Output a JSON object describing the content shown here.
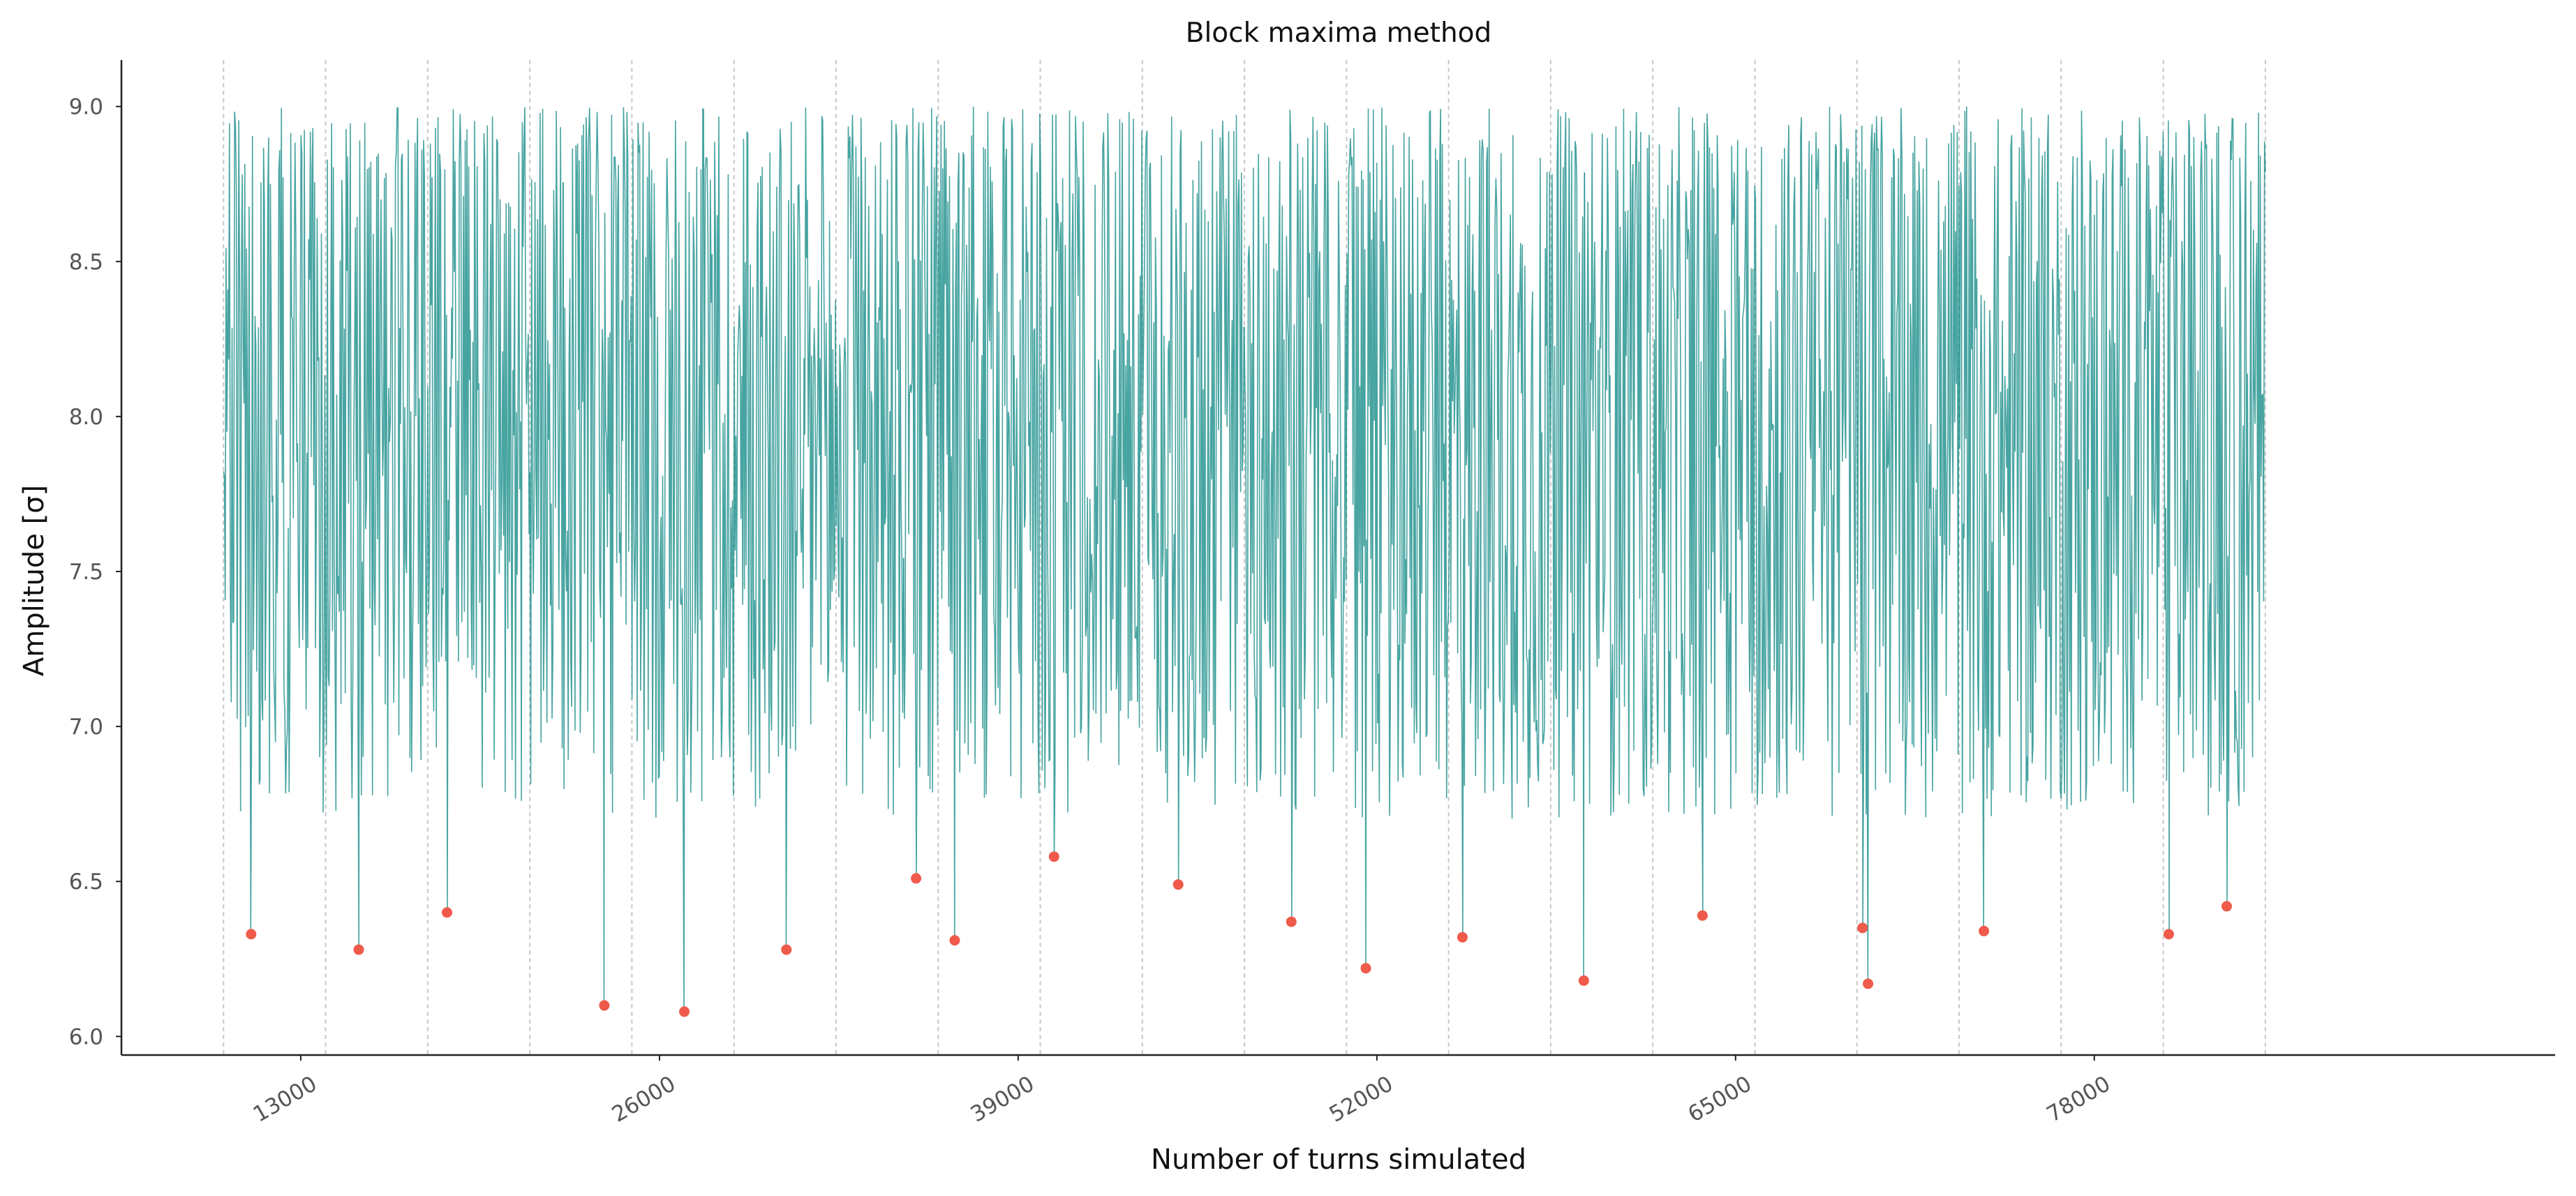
{
  "chart_data": {
    "type": "line",
    "title": "Block maxima method",
    "xlabel": "Number of turns simulated",
    "ylabel": "Amplitude [σ]",
    "xlim": [
      6500,
      94700
    ],
    "ylim": [
      5.94,
      9.15
    ],
    "xticks": [
      13000,
      26000,
      39000,
      52000,
      65000,
      78000
    ],
    "xtick_labels": [
      "13000",
      "26000",
      "39000",
      "52000",
      "65000",
      "78000"
    ],
    "yticks": [
      6.0,
      6.5,
      7.0,
      7.5,
      8.0,
      8.5,
      9.0
    ],
    "ytick_labels": [
      "6.0",
      "6.5",
      "7.0",
      "7.5",
      "8.0",
      "8.5",
      "9.0"
    ],
    "block_boundaries": [
      10200,
      13900,
      17600,
      21300,
      25000,
      28700,
      32400,
      36100,
      39800,
      43500,
      47200,
      50900,
      54600,
      58300,
      62000,
      65700,
      69400,
      73100,
      76800,
      80500,
      84200
    ],
    "grid": "vertical dashed lines at block boundaries",
    "series": [
      {
        "name": "",
        "kind": "line",
        "color": "#138a86",
        "x_start": 10200,
        "x_end": 84200,
        "y_range": [
          6.08,
          9.0
        ],
        "values_note_visible": ""
      },
      {
        "name": "",
        "kind": "scatter",
        "color": "#ef5a4a",
        "x": [
          11200,
          15100,
          18300,
          24000,
          26900,
          30600,
          35300,
          36700,
          40300,
          44800,
          48900,
          51600,
          55100,
          59500,
          63800,
          69600,
          69800,
          74000,
          80700,
          82800
        ],
        "y": [
          6.33,
          6.28,
          6.4,
          6.1,
          6.08,
          6.28,
          6.51,
          6.31,
          6.58,
          6.49,
          6.37,
          6.22,
          6.32,
          6.18,
          6.39,
          6.35,
          6.17,
          6.34,
          6.33,
          6.42
        ]
      }
    ]
  }
}
